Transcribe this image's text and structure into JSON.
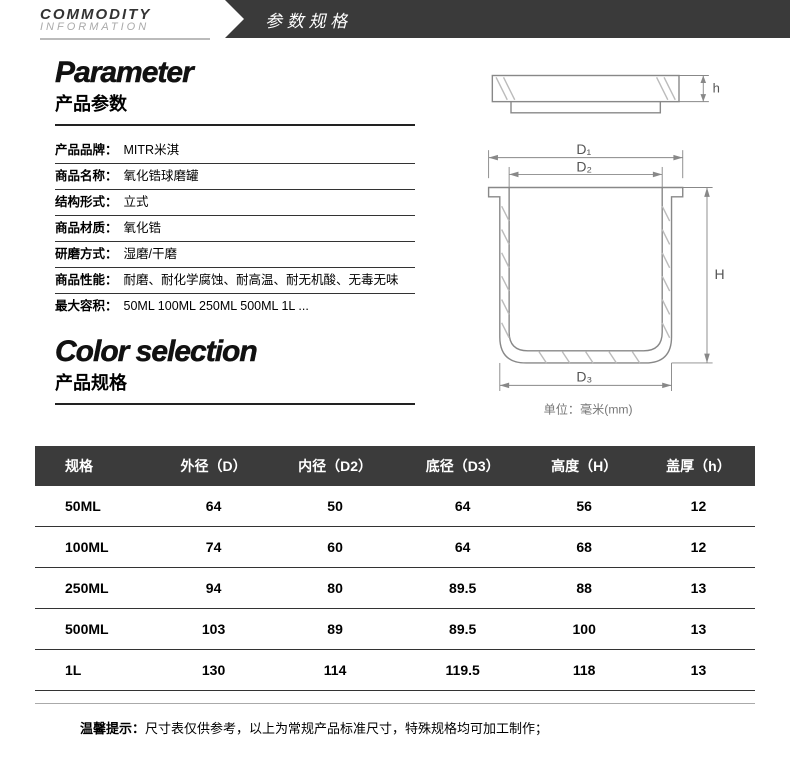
{
  "header": {
    "title_en": "COMMODITY",
    "subtitle_en": "INFORMATION",
    "title_cn": "参 数 规 格"
  },
  "parameter_section": {
    "title_en": "Parameter",
    "title_cn": "产品参数",
    "attributes": [
      {
        "label": "产品品牌：",
        "value": "MITR米淇"
      },
      {
        "label": "商品名称：",
        "value": "氧化锆球磨罐"
      },
      {
        "label": "结构形式：",
        "value": "立式"
      },
      {
        "label": "商品材质：",
        "value": "氧化锆"
      },
      {
        "label": "研磨方式：",
        "value": "湿磨/干磨"
      },
      {
        "label": "商品性能：",
        "value": "耐磨、耐化学腐蚀、耐高温、耐无机酸、无毒无味"
      },
      {
        "label": "最大容积：",
        "value": "50ML  100ML  250ML  500ML   1L ..."
      }
    ]
  },
  "color_section": {
    "title_en": "Color selection",
    "title_cn": "产品规格"
  },
  "diagram": {
    "lid_label": "h",
    "jar_labels": {
      "d1": "D₁",
      "d2": "D₂",
      "d3": "D₃",
      "h": "H"
    },
    "unit_label": "单位：毫米(mm)",
    "stroke_color": "#888888",
    "hatch_color": "#aaaaaa",
    "dim_color": "#888888"
  },
  "spec_table": {
    "columns": [
      "规格",
      "外径（D）",
      "内径（D2）",
      "底径（D3）",
      "高度（H）",
      "盖厚（h）"
    ],
    "rows": [
      [
        "50ML",
        "64",
        "50",
        "64",
        "56",
        "12"
      ],
      [
        "100ML",
        "74",
        "60",
        "64",
        "68",
        "12"
      ],
      [
        "250ML",
        "94",
        "80",
        "89.5",
        "88",
        "13"
      ],
      [
        "500ML",
        "103",
        "89",
        "89.5",
        "100",
        "13"
      ],
      [
        "1L",
        "130",
        "114",
        "119.5",
        "118",
        "13"
      ]
    ],
    "header_bg": "#3b3b3b",
    "header_fg": "#ffffff",
    "border_color": "#333333"
  },
  "footer": {
    "label": "温馨提示：",
    "text": "尺寸表仅供参考，以上为常规产品标准尺寸，特殊规格均可加工制作；"
  }
}
